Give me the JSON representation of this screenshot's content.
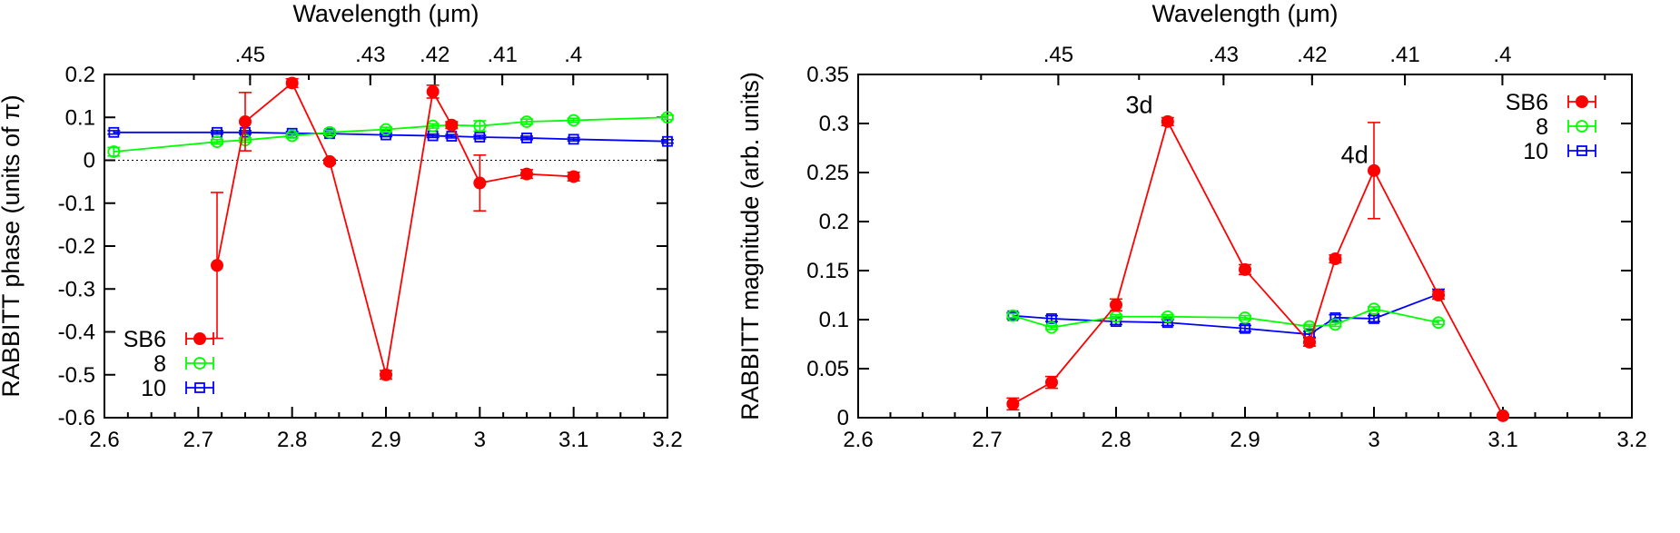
{
  "chart_data": [
    {
      "type": "scatter",
      "ylabel": "RABBITT phase (units of π)",
      "x2label": "Wavelength  (μm)",
      "xlim": [
        2.6,
        3.2
      ],
      "ylim": [
        -0.6,
        0.2
      ],
      "xticks": [
        2.6,
        2.7,
        2.8,
        2.9,
        3.0,
        3.1,
        3.2
      ],
      "xtick_labels": [
        "2.6",
        "2.7",
        "2.8",
        "2.9",
        "3",
        "3.1",
        "3.2"
      ],
      "yticks": [
        -0.6,
        -0.5,
        -0.4,
        -0.3,
        -0.2,
        -0.1,
        0,
        0.1,
        0.2
      ],
      "ytick_labels": [
        "-0.6",
        "-0.5",
        "-0.4",
        "-0.3",
        "-0.2",
        "-0.1",
        "0",
        "0.1",
        "0.2"
      ],
      "x2ticks": [
        0.45,
        0.43,
        0.42,
        0.41,
        0.4
      ],
      "x2tick_labels": [
        ".45",
        ".43",
        ".42",
        ".41",
        ".4"
      ],
      "zero_line": true,
      "grid": false,
      "legend_position": "bottom-left",
      "series": [
        {
          "name": "SB6",
          "color": "#ff0000",
          "marker": "filled-circle",
          "points": [
            {
              "x": 2.72,
              "y": -0.245,
              "err": 0.17
            },
            {
              "x": 2.75,
              "y": 0.09,
              "err": 0.068
            },
            {
              "x": 2.8,
              "y": 0.18,
              "err": 0.01
            },
            {
              "x": 2.84,
              "y": -0.003,
              "err": 0.005
            },
            {
              "x": 2.9,
              "y": -0.5,
              "err": 0.01
            },
            {
              "x": 2.95,
              "y": 0.16,
              "err": 0.015
            },
            {
              "x": 2.97,
              "y": 0.082,
              "err": 0.008
            },
            {
              "x": 3.0,
              "y": -0.053,
              "err": 0.065
            },
            {
              "x": 3.05,
              "y": -0.032,
              "err": 0.01
            },
            {
              "x": 3.1,
              "y": -0.038,
              "err": 0.01
            }
          ]
        },
        {
          "name": "8",
          "color": "#00ff00",
          "marker": "open-circle",
          "points": [
            {
              "x": 2.61,
              "y": 0.02,
              "err": 0.01
            },
            {
              "x": 2.72,
              "y": 0.043,
              "err": 0.005
            },
            {
              "x": 2.75,
              "y": 0.047,
              "err": 0.005
            },
            {
              "x": 2.8,
              "y": 0.057,
              "err": 0.005
            },
            {
              "x": 2.84,
              "y": 0.065,
              "err": 0.005
            },
            {
              "x": 2.9,
              "y": 0.072,
              "err": 0.005
            },
            {
              "x": 2.95,
              "y": 0.08,
              "err": 0.005
            },
            {
              "x": 2.97,
              "y": 0.082,
              "err": 0.005
            },
            {
              "x": 3.0,
              "y": 0.08,
              "err": 0.012
            },
            {
              "x": 3.05,
              "y": 0.09,
              "err": 0.006
            },
            {
              "x": 3.1,
              "y": 0.093,
              "err": 0.005
            },
            {
              "x": 3.2,
              "y": 0.1,
              "err": 0.005
            }
          ]
        },
        {
          "name": "10",
          "color": "#0000ff",
          "marker": "open-square",
          "points": [
            {
              "x": 2.61,
              "y": 0.065,
              "err": 0.004
            },
            {
              "x": 2.72,
              "y": 0.065,
              "err": 0.004
            },
            {
              "x": 2.75,
              "y": 0.065,
              "err": 0.004
            },
            {
              "x": 2.8,
              "y": 0.063,
              "err": 0.004
            },
            {
              "x": 2.84,
              "y": 0.062,
              "err": 0.004
            },
            {
              "x": 2.9,
              "y": 0.059,
              "err": 0.004
            },
            {
              "x": 2.95,
              "y": 0.057,
              "err": 0.004
            },
            {
              "x": 2.97,
              "y": 0.056,
              "err": 0.004
            },
            {
              "x": 3.0,
              "y": 0.054,
              "err": 0.004
            },
            {
              "x": 3.05,
              "y": 0.052,
              "err": 0.004
            },
            {
              "x": 3.1,
              "y": 0.049,
              "err": 0.004
            },
            {
              "x": 3.2,
              "y": 0.044,
              "err": 0.004
            }
          ]
        }
      ],
      "annotations": []
    },
    {
      "type": "scatter",
      "ylabel": "RABBITT magnitude (arb. units)",
      "x2label": "Wavelength  (μm)",
      "xlim": [
        2.6,
        3.2
      ],
      "ylim": [
        0,
        0.35
      ],
      "xticks": [
        2.6,
        2.7,
        2.8,
        2.9,
        3.0,
        3.1,
        3.2
      ],
      "xtick_labels": [
        "2.6",
        "2.7",
        "2.8",
        "2.9",
        "3",
        "3.1",
        "3.2"
      ],
      "yticks": [
        0,
        0.05,
        0.1,
        0.15,
        0.2,
        0.25,
        0.3,
        0.35
      ],
      "ytick_labels": [
        "0",
        "0.05",
        "0.1",
        "0.15",
        "0.2",
        "0.25",
        "0.3",
        "0.35"
      ],
      "x2ticks": [
        0.45,
        0.43,
        0.42,
        0.41,
        0.4
      ],
      "x2tick_labels": [
        ".45",
        ".43",
        ".42",
        ".41",
        ".4"
      ],
      "zero_line": false,
      "grid": false,
      "legend_position": "top-right",
      "series": [
        {
          "name": "SB6",
          "color": "#ff0000",
          "marker": "filled-circle",
          "points": [
            {
              "x": 2.72,
              "y": 0.014,
              "err": 0.006
            },
            {
              "x": 2.75,
              "y": 0.036,
              "err": 0.006
            },
            {
              "x": 2.8,
              "y": 0.115,
              "err": 0.006
            },
            {
              "x": 2.84,
              "y": 0.302,
              "err": 0.004
            },
            {
              "x": 2.9,
              "y": 0.151,
              "err": 0.005
            },
            {
              "x": 2.95,
              "y": 0.077,
              "err": 0.004
            },
            {
              "x": 2.97,
              "y": 0.162,
              "err": 0.004
            },
            {
              "x": 3.0,
              "y": 0.252,
              "err": 0.049
            },
            {
              "x": 3.05,
              "y": 0.125,
              "err": 0.004
            },
            {
              "x": 3.1,
              "y": 0.002,
              "err": 0.001
            }
          ]
        },
        {
          "name": "8",
          "color": "#00ff00",
          "marker": "open-circle",
          "points": [
            {
              "x": 2.72,
              "y": 0.104,
              "err": 0.002
            },
            {
              "x": 2.75,
              "y": 0.092,
              "err": 0.002
            },
            {
              "x": 2.8,
              "y": 0.103,
              "err": 0.002
            },
            {
              "x": 2.84,
              "y": 0.103,
              "err": 0.002
            },
            {
              "x": 2.9,
              "y": 0.102,
              "err": 0.002
            },
            {
              "x": 2.95,
              "y": 0.093,
              "err": 0.002
            },
            {
              "x": 2.97,
              "y": 0.095,
              "err": 0.002
            },
            {
              "x": 3.0,
              "y": 0.111,
              "err": 0.002
            },
            {
              "x": 3.05,
              "y": 0.097,
              "err": 0.002
            }
          ]
        },
        {
          "name": "10",
          "color": "#0000ff",
          "marker": "open-square",
          "points": [
            {
              "x": 2.72,
              "y": 0.104,
              "err": 0.003
            },
            {
              "x": 2.75,
              "y": 0.101,
              "err": 0.003
            },
            {
              "x": 2.8,
              "y": 0.098,
              "err": 0.003
            },
            {
              "x": 2.84,
              "y": 0.097,
              "err": 0.003
            },
            {
              "x": 2.9,
              "y": 0.091,
              "err": 0.003
            },
            {
              "x": 2.95,
              "y": 0.085,
              "err": 0.003
            },
            {
              "x": 2.97,
              "y": 0.102,
              "err": 0.003
            },
            {
              "x": 3.0,
              "y": 0.101,
              "err": 0.003
            },
            {
              "x": 3.05,
              "y": 0.126,
              "err": 0.005
            }
          ]
        }
      ],
      "annotations": [
        {
          "text": "3d",
          "x": 2.818,
          "y": 0.319
        },
        {
          "text": "4d",
          "x": 2.985,
          "y": 0.268
        }
      ]
    }
  ]
}
